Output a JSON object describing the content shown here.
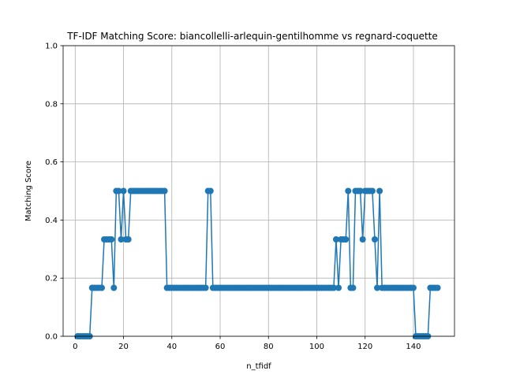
{
  "chart_data": {
    "type": "line",
    "title": "TF-IDF Matching Score: biancollelli-arlequin-gentilhomme vs regnard-coquette",
    "xlabel": "n_tfidf",
    "ylabel": "Matching Score",
    "xlim": [
      -5,
      157
    ],
    "ylim": [
      0,
      1
    ],
    "xticks": [
      0,
      20,
      40,
      60,
      80,
      100,
      120,
      140
    ],
    "yticks": [
      0.0,
      0.2,
      0.4,
      0.6,
      0.8,
      1.0
    ],
    "grid": true,
    "color": "#1f77b4",
    "marker": "circle",
    "x_start": 1,
    "x_step": 1,
    "y": [
      0,
      0,
      0,
      0,
      0,
      0,
      0.1667,
      0.1667,
      0.1667,
      0.1667,
      0.1667,
      0.3333,
      0.3333,
      0.3333,
      0.3333,
      0.1667,
      0.5,
      0.5,
      0.3333,
      0.5,
      0.3333,
      0.3333,
      0.5,
      0.5,
      0.5,
      0.5,
      0.5,
      0.5,
      0.5,
      0.5,
      0.5,
      0.5,
      0.5,
      0.5,
      0.5,
      0.5,
      0.5,
      0.1667,
      0.1667,
      0.1667,
      0.1667,
      0.1667,
      0.1667,
      0.1667,
      0.1667,
      0.1667,
      0.1667,
      0.1667,
      0.1667,
      0.1667,
      0.1667,
      0.1667,
      0.1667,
      0.1667,
      0.5,
      0.5,
      0.1667,
      0.1667,
      0.1667,
      0.1667,
      0.1667,
      0.1667,
      0.1667,
      0.1667,
      0.1667,
      0.1667,
      0.1667,
      0.1667,
      0.1667,
      0.1667,
      0.1667,
      0.1667,
      0.1667,
      0.1667,
      0.1667,
      0.1667,
      0.1667,
      0.1667,
      0.1667,
      0.1667,
      0.1667,
      0.1667,
      0.1667,
      0.1667,
      0.1667,
      0.1667,
      0.1667,
      0.1667,
      0.1667,
      0.1667,
      0.1667,
      0.1667,
      0.1667,
      0.1667,
      0.1667,
      0.1667,
      0.1667,
      0.1667,
      0.1667,
      0.1667,
      0.1667,
      0.1667,
      0.1667,
      0.1667,
      0.1667,
      0.1667,
      0.1667,
      0.3333,
      0.1667,
      0.3333,
      0.3333,
      0.3333,
      0.5,
      0.1667,
      0.1667,
      0.5,
      0.5,
      0.5,
      0.3333,
      0.5,
      0.5,
      0.5,
      0.5,
      0.3333,
      0.1667,
      0.5,
      0.1667,
      0.1667,
      0.1667,
      0.1667,
      0.1667,
      0.1667,
      0.1667,
      0.1667,
      0.1667,
      0.1667,
      0.1667,
      0.1667,
      0.1667,
      0.1667,
      0,
      0,
      0,
      0,
      0,
      0,
      0.1667,
      0.1667,
      0.1667,
      0.1667
    ]
  }
}
